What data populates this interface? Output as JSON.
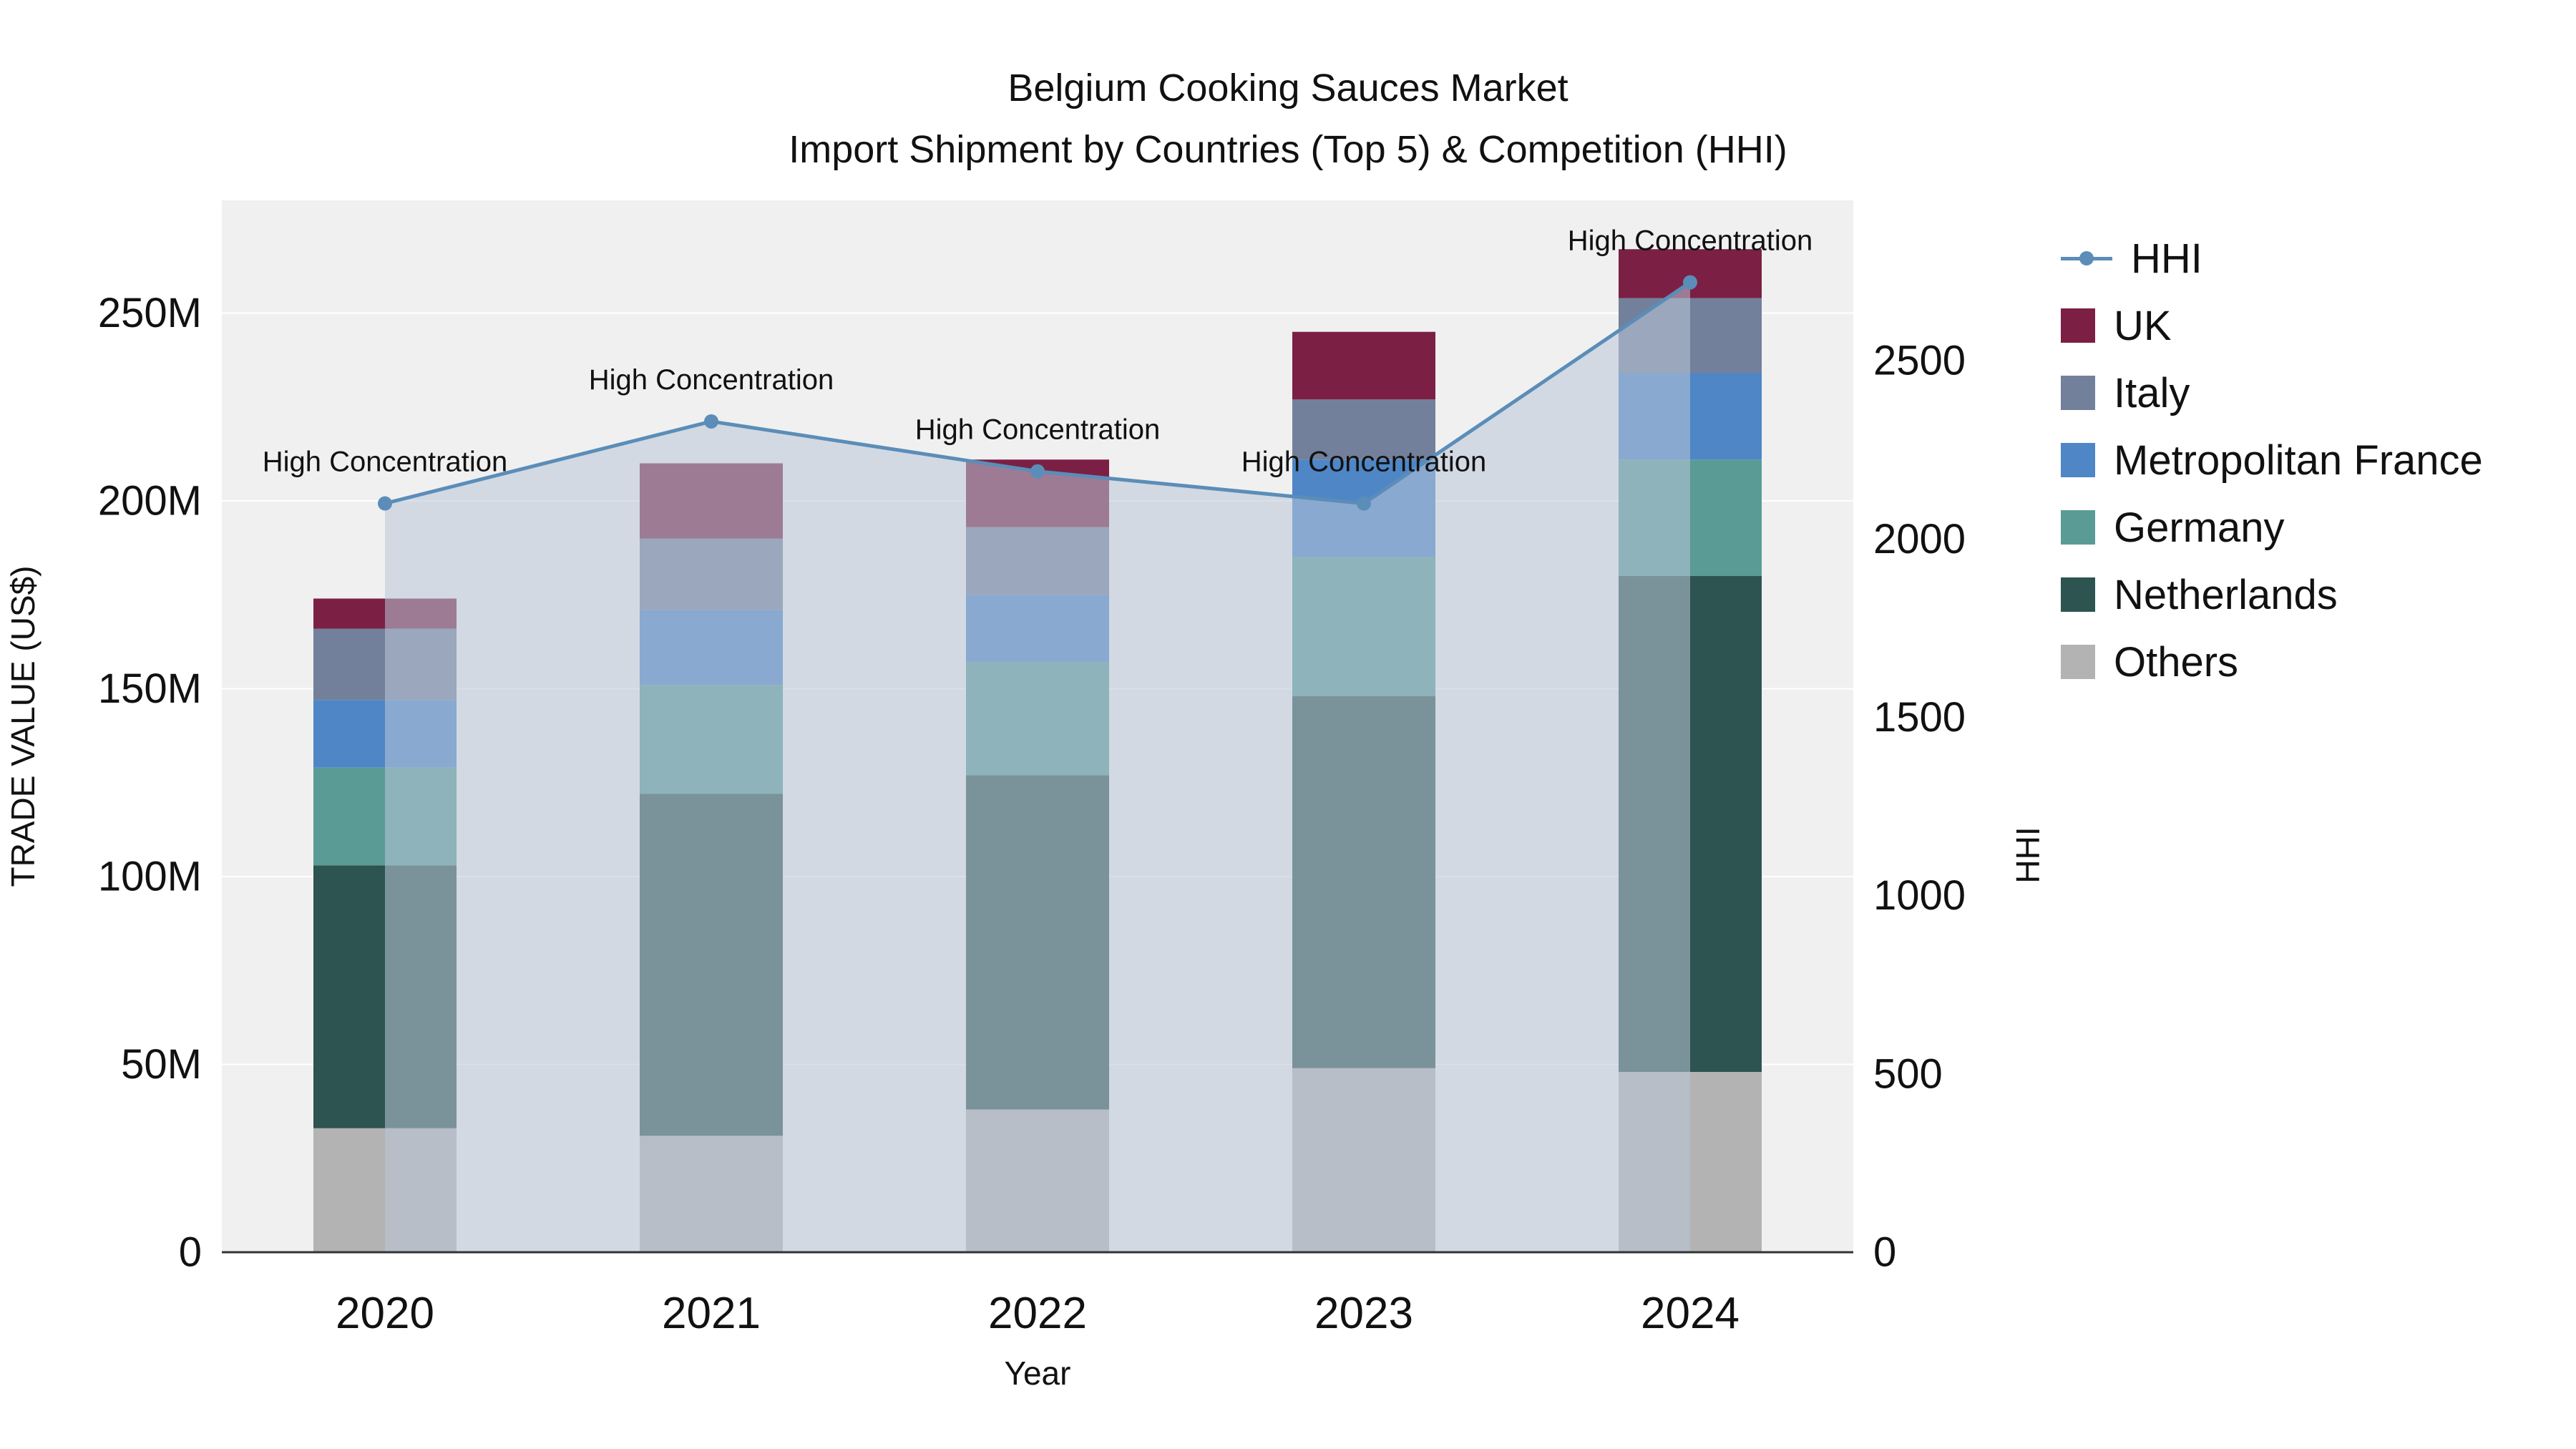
{
  "chart_data": {
    "type": "bar",
    "subtype": "stacked-bar-with-line-overlay",
    "title": [
      "Belgium Cooking Sauces Market",
      "Import Shipment by Countries (Top 5) & Competition (HHI)"
    ],
    "xlabel": "Year",
    "ylabel_left": "TRADE VALUE (US$)",
    "ylabel_right": "HHI",
    "categories": [
      "2020",
      "2021",
      "2022",
      "2023",
      "2024"
    ],
    "bar_unit": "M US$",
    "series": [
      {
        "name": "Others",
        "color": "#b3b3b3",
        "values": [
          33,
          31,
          38,
          49,
          48
        ]
      },
      {
        "name": "Netherlands",
        "color": "#2d5450",
        "values": [
          70,
          91,
          89,
          99,
          132
        ]
      },
      {
        "name": "Germany",
        "color": "#5a9b96",
        "values": [
          26,
          29,
          30,
          37,
          31
        ]
      },
      {
        "name": "Metropolitan France",
        "color": "#4e86c6",
        "values": [
          18,
          20,
          18,
          26,
          23
        ]
      },
      {
        "name": "Italy",
        "color": "#73809b",
        "values": [
          19,
          19,
          18,
          16,
          20
        ]
      },
      {
        "name": "UK",
        "color": "#7b2044",
        "values": [
          8,
          20,
          18,
          18,
          13
        ]
      }
    ],
    "line_series": {
      "name": "HHI",
      "color": "#5b8db8",
      "fill_color": "#b9c7d8",
      "values": [
        2100,
        2330,
        2190,
        2100,
        2720
      ]
    },
    "annotations": [
      "High Concentration",
      "High Concentration",
      "High Concentration",
      "High Concentration",
      "High Concentration"
    ],
    "left_axis": {
      "max": 280,
      "ticks": [
        0,
        50,
        100,
        150,
        200,
        250
      ],
      "tick_labels": [
        "0",
        "50M",
        "100M",
        "150M",
        "200M",
        "250M"
      ]
    },
    "right_axis": {
      "max": 2950,
      "ticks": [
        0,
        500,
        1000,
        1500,
        2000,
        2500
      ],
      "tick_labels": [
        "0",
        "500",
        "1000",
        "1500",
        "2000",
        "2500"
      ]
    },
    "grid": true,
    "legend_position": "right",
    "legend": [
      {
        "label": "HHI",
        "type": "line",
        "color": "#5b8db8"
      },
      {
        "label": "UK",
        "type": "square",
        "color": "#7b2044"
      },
      {
        "label": "Italy",
        "type": "square",
        "color": "#73809b"
      },
      {
        "label": "Metropolitan France",
        "type": "square",
        "color": "#4e86c6"
      },
      {
        "label": "Germany",
        "type": "square",
        "color": "#5a9b96"
      },
      {
        "label": "Netherlands",
        "type": "square",
        "color": "#2d5450"
      },
      {
        "label": "Others",
        "type": "square",
        "color": "#b3b3b3"
      }
    ],
    "colors": {
      "plot_background": "#f0f0f0",
      "gridline": "#ffffff",
      "axis_line": "#333333",
      "text": "#111111"
    }
  }
}
